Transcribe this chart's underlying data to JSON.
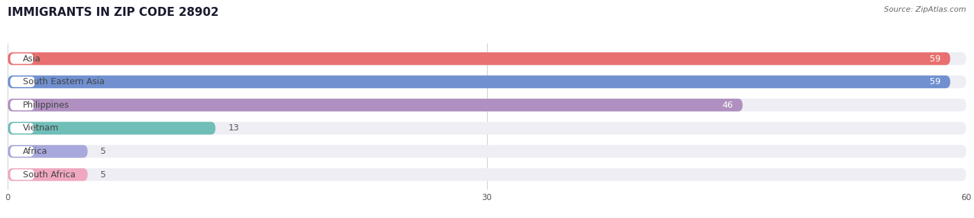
{
  "title": "IMMIGRANTS IN ZIP CODE 28902",
  "source": "Source: ZipAtlas.com",
  "categories": [
    "Asia",
    "South Eastern Asia",
    "Philippines",
    "Vietnam",
    "Africa",
    "South Africa"
  ],
  "values": [
    59,
    59,
    46,
    13,
    5,
    5
  ],
  "bar_colors": [
    "#E87070",
    "#7090D0",
    "#B090C0",
    "#70BEB8",
    "#A8A8DC",
    "#F0A8C0"
  ],
  "bar_bg_color": "#EEEEF4",
  "xlim": [
    0,
    60
  ],
  "xticks": [
    0,
    30,
    60
  ],
  "label_fontsize": 9.0,
  "value_fontsize": 9.0,
  "title_fontsize": 12,
  "bar_height": 0.55,
  "background_color": "#FFFFFF",
  "label_color": "#444444",
  "value_inside_color": "#FFFFFF",
  "value_outside_color": "#555555"
}
